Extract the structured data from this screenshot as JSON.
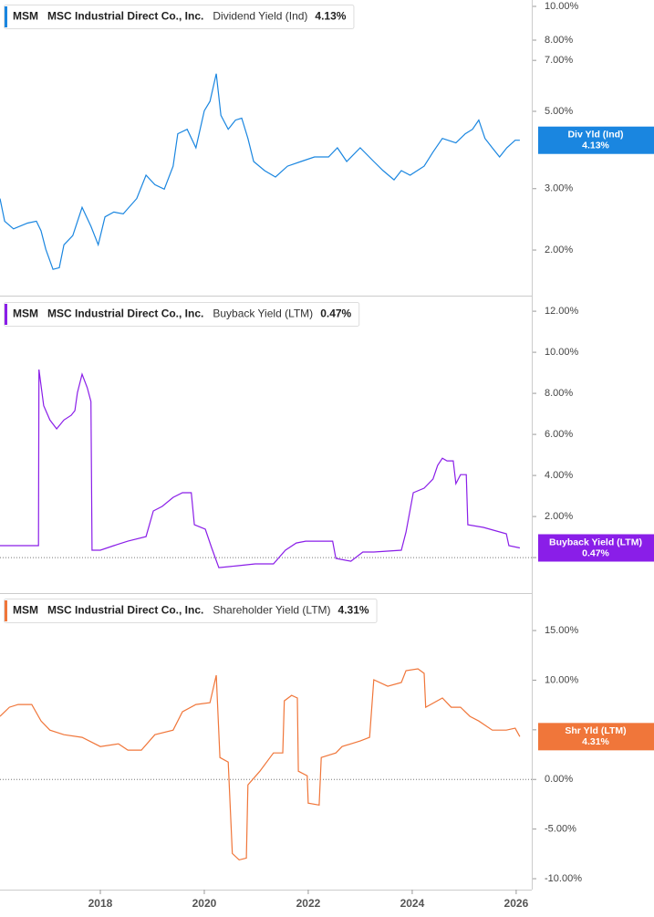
{
  "chart_data": [
    {
      "type": "line",
      "header": {
        "ticker": "MSM",
        "company": "MSC Industrial Direct Co., Inc.",
        "metric": "Dividend Yield (Ind)"
      },
      "current": {
        "value": 4.13,
        "label": "4.13%"
      },
      "log_scale": true,
      "zero_line": false,
      "xlim": [
        2016.07,
        2026.3
      ],
      "ylim": [
        1.48,
        10.43
      ],
      "yticks": [
        {
          "value": 2,
          "label": "2.00%"
        },
        {
          "value": 3,
          "label": "3.00%"
        },
        {
          "value": 5,
          "label": "5.00%"
        },
        {
          "value": 7,
          "label": "7.00%"
        },
        {
          "value": 8,
          "label": "8.00%"
        },
        {
          "value": 10,
          "label": "10.00%"
        }
      ],
      "x": [
        2016.07,
        2016.16,
        2016.33,
        2016.6,
        2016.77,
        2016.86,
        2016.95,
        2017.09,
        2017.21,
        2017.3,
        2017.47,
        2017.65,
        2017.82,
        2017.96,
        2018.09,
        2018.26,
        2018.44,
        2018.7,
        2018.88,
        2019.05,
        2019.23,
        2019.4,
        2019.49,
        2019.67,
        2019.84,
        2020.0,
        2020.11,
        2020.23,
        2020.32,
        2020.46,
        2020.6,
        2020.72,
        2020.84,
        2020.95,
        2021.16,
        2021.37,
        2021.6,
        2021.86,
        2022.12,
        2022.39,
        2022.56,
        2022.74,
        2023.0,
        2023.26,
        2023.44,
        2023.65,
        2023.79,
        2023.96,
        2024.23,
        2024.4,
        2024.58,
        2024.84,
        2025.02,
        2025.16,
        2025.28,
        2025.4,
        2025.54,
        2025.68,
        2025.82,
        2025.98,
        2026.07
      ],
      "series": [
        {
          "name": "Div Yld (Ind)",
          "color": "#1a86e0",
          "values": [
            2.81,
            2.42,
            2.3,
            2.39,
            2.42,
            2.27,
            2.01,
            1.76,
            1.78,
            2.07,
            2.2,
            2.65,
            2.34,
            2.07,
            2.49,
            2.57,
            2.54,
            2.81,
            3.28,
            3.08,
            2.99,
            3.48,
            4.31,
            4.44,
            3.93,
            5.02,
            5.34,
            6.41,
            4.87,
            4.44,
            4.72,
            4.78,
            4.18,
            3.59,
            3.38,
            3.24,
            3.48,
            3.59,
            3.7,
            3.7,
            3.93,
            3.59,
            3.93,
            3.59,
            3.38,
            3.18,
            3.38,
            3.28,
            3.48,
            3.82,
            4.18,
            4.06,
            4.31,
            4.44,
            4.72,
            4.18,
            3.93,
            3.7,
            3.93,
            4.13,
            4.13
          ]
        }
      ]
    },
    {
      "type": "line",
      "header": {
        "ticker": "MSM",
        "company": "MSC Industrial Direct Co., Inc.",
        "metric": "Buyback Yield (LTM)"
      },
      "current": {
        "value": 0.47,
        "label": "0.47%"
      },
      "log_scale": false,
      "zero_line": true,
      "xlim": [
        2016.07,
        2026.3
      ],
      "ylim": [
        -1.73,
        12.67
      ],
      "yticks": [
        {
          "value": 0,
          "label": "0.00%"
        },
        {
          "value": 2,
          "label": "2.00%"
        },
        {
          "value": 4,
          "label": "4.00%"
        },
        {
          "value": 6,
          "label": "6.00%"
        },
        {
          "value": 8,
          "label": "8.00%"
        },
        {
          "value": 10,
          "label": "10.00%"
        },
        {
          "value": 12,
          "label": "12.00%"
        }
      ],
      "x": [
        2016.07,
        2016.81,
        2016.82,
        2016.91,
        2017.03,
        2017.16,
        2017.3,
        2017.44,
        2017.51,
        2017.56,
        2017.65,
        2017.75,
        2017.82,
        2017.84,
        2018.0,
        2018.26,
        2018.53,
        2018.88,
        2019.02,
        2019.19,
        2019.4,
        2019.58,
        2019.75,
        2019.81,
        2020.02,
        2020.14,
        2020.28,
        2020.63,
        2020.98,
        2021.33,
        2021.56,
        2021.77,
        2021.95,
        2022.47,
        2022.53,
        2022.82,
        2023.05,
        2023.26,
        2023.79,
        2023.88,
        2024.02,
        2024.23,
        2024.4,
        2024.49,
        2024.58,
        2024.67,
        2024.79,
        2024.84,
        2024.93,
        2025.04,
        2025.07,
        2025.37,
        2025.81,
        2025.86,
        2026.07
      ],
      "series": [
        {
          "name": "Buyback Yield (LTM)",
          "color": "#8a1ee8",
          "values": [
            0.58,
            0.58,
            9.16,
            7.4,
            6.7,
            6.27,
            6.7,
            6.93,
            7.16,
            8.04,
            8.93,
            8.27,
            7.6,
            0.36,
            0.36,
            0.58,
            0.8,
            1.02,
            2.27,
            2.49,
            2.93,
            3.16,
            3.16,
            1.6,
            1.38,
            0.49,
            -0.49,
            -0.4,
            -0.31,
            -0.31,
            0.36,
            0.71,
            0.8,
            0.8,
            -0.04,
            -0.18,
            0.27,
            0.27,
            0.36,
            1.24,
            3.16,
            3.38,
            3.82,
            4.49,
            4.84,
            4.71,
            4.71,
            3.6,
            4.04,
            4.04,
            1.6,
            1.47,
            1.16,
            0.58,
            0.47
          ]
        }
      ]
    },
    {
      "type": "line",
      "header": {
        "ticker": "MSM",
        "company": "MSC Industrial Direct Co., Inc.",
        "metric": "Shareholder Yield (LTM)"
      },
      "current": {
        "value": 4.31,
        "label": "4.31%"
      },
      "log_scale": false,
      "zero_line": true,
      "xlim": [
        2016.07,
        2026.3
      ],
      "ylim": [
        -11.1,
        18.68
      ],
      "xticks": [
        2018,
        2020,
        2022,
        2024,
        2026
      ],
      "yticks": [
        {
          "value": -10,
          "label": "-10.00%"
        },
        {
          "value": -5,
          "label": "-5.00%"
        },
        {
          "value": 0,
          "label": "0.00%"
        },
        {
          "value": 5,
          "label": "5.00%"
        },
        {
          "value": 10,
          "label": "10.00%"
        },
        {
          "value": 15,
          "label": "15.00%"
        }
      ],
      "x": [
        2016.07,
        2016.25,
        2016.42,
        2016.68,
        2016.86,
        2017.03,
        2017.3,
        2017.65,
        2018.0,
        2018.35,
        2018.53,
        2018.79,
        2019.05,
        2019.4,
        2019.58,
        2019.84,
        2020.11,
        2020.23,
        2020.3,
        2020.46,
        2020.54,
        2020.67,
        2020.81,
        2020.84,
        2021.07,
        2021.33,
        2021.51,
        2021.54,
        2021.68,
        2021.79,
        2021.81,
        2021.98,
        2022.0,
        2022.21,
        2022.25,
        2022.53,
        2022.65,
        2023.0,
        2023.18,
        2023.26,
        2023.53,
        2023.79,
        2023.88,
        2024.11,
        2024.23,
        2024.26,
        2024.58,
        2024.75,
        2024.93,
        2025.11,
        2025.28,
        2025.54,
        2025.81,
        2025.98,
        2026.07
      ],
      "series": [
        {
          "name": "Shr Yld (LTM)",
          "color": "#f0763a",
          "values": [
            6.35,
            7.27,
            7.55,
            7.55,
            5.89,
            4.97,
            4.51,
            4.24,
            3.31,
            3.59,
            2.95,
            2.95,
            4.51,
            4.97,
            6.81,
            7.55,
            7.73,
            10.5,
            2.21,
            1.75,
            -7.46,
            -8.1,
            -7.92,
            -0.55,
            0.83,
            2.67,
            2.67,
            7.92,
            8.47,
            8.2,
            0.83,
            0.37,
            -2.39,
            -2.58,
            2.21,
            2.67,
            3.31,
            3.87,
            4.24,
            10.04,
            9.39,
            9.76,
            10.96,
            11.14,
            10.68,
            7.27,
            8.2,
            7.27,
            7.27,
            6.35,
            5.89,
            4.97,
            4.97,
            5.16,
            4.31
          ]
        }
      ]
    }
  ]
}
